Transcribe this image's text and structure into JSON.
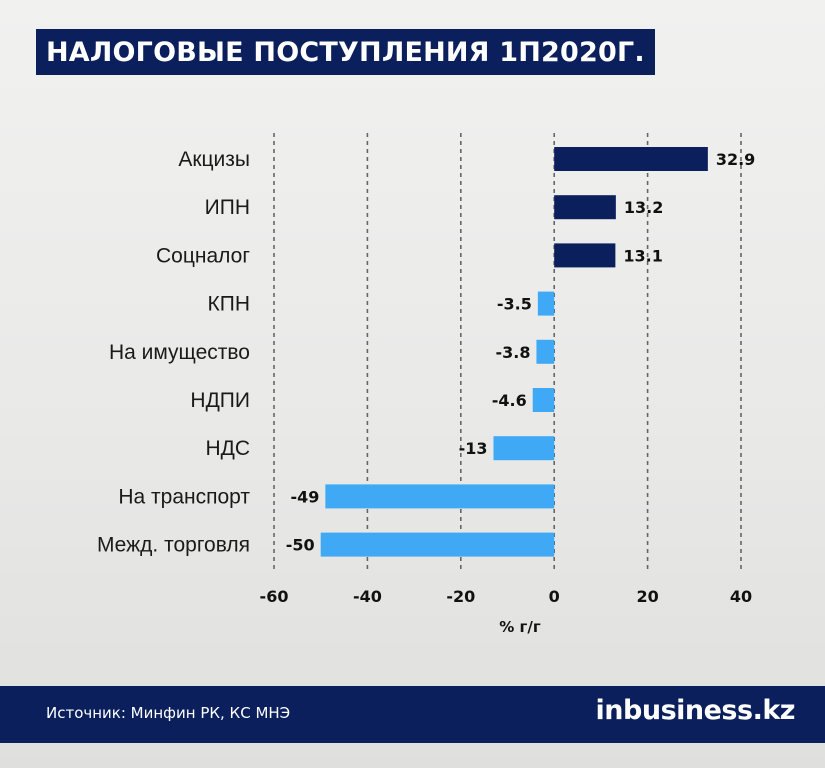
{
  "header": {
    "title": "НАЛОГОВЫЕ ПОСТУПЛЕНИЯ 1П2020Г."
  },
  "footer": {
    "source": "Источник: Минфин РК, КС МНЭ",
    "brand_prefix": "in",
    "brand_suffix": "business.kz"
  },
  "colors": {
    "positive_bar": "#0a1f5c",
    "negative_bar": "#3fa9f5",
    "title_bg": "#0a1f5c",
    "grid": "#666666"
  },
  "chart_data": {
    "type": "bar",
    "orientation": "horizontal",
    "categories": [
      "Акцизы",
      "ИПН",
      "Соцналог",
      "КПН",
      "На имущество",
      "НДПИ",
      "НДС",
      "На транспорт",
      "Межд. торговля"
    ],
    "values": [
      32.9,
      13.2,
      13.1,
      -3.5,
      -3.8,
      -4.6,
      -13,
      -49,
      -50
    ],
    "value_labels": [
      "32.9",
      "13.2",
      "13.1",
      "-3.5",
      "-3.8",
      "-4.6",
      "-13",
      "-49",
      "-50"
    ],
    "xlabel": "% г/г",
    "xlim": [
      -60,
      40
    ],
    "xticks": [
      -60,
      -40,
      -20,
      0,
      20,
      40
    ],
    "grid": "vertical-dashed"
  }
}
